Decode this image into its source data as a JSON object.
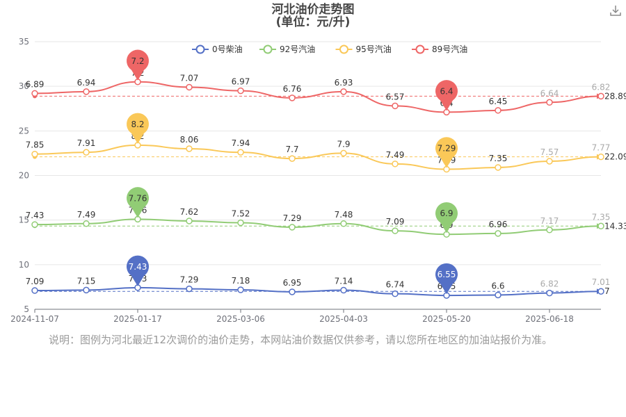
{
  "header": {
    "title": "河北油价走势图",
    "subtitle": "(单位：元/升)",
    "download_icon": "download-icon"
  },
  "footer": {
    "note": "说明：图例为河北最近12次调价的油价走势，本网站油价数据仅供参考，请以您所在地区的加油站报价为准。"
  },
  "chart_data": {
    "type": "line",
    "x_ticks": [
      "2024-11-07",
      "2025-01-17",
      "2025-03-06",
      "2025-04-03",
      "2025-05-20",
      "2025-06-18"
    ],
    "ylim": [
      5,
      35
    ],
    "y_ticks": [
      5,
      10,
      15,
      20,
      25,
      30,
      35
    ],
    "legend_position": "top-center",
    "grid": true,
    "series": [
      {
        "name": "0号柴油",
        "color": "#5470c6",
        "values": [
          7.09,
          7.15,
          7.43,
          7.29,
          7.18,
          6.95,
          7.14,
          6.74,
          6.55,
          6.6,
          6.82,
          7.01
        ],
        "draw_values": [
          7.1,
          7.15,
          7.43,
          7.29,
          7.18,
          6.95,
          7.14,
          6.74,
          6.55,
          6.6,
          6.82,
          7.01
        ],
        "marker_labels": [
          "",
          "",
          "7.43",
          "",
          "",
          "",
          "",
          "",
          "6.55",
          "",
          "",
          ""
        ],
        "reference_label": "7",
        "max_pin": "7.43",
        "min_pin": "6.55"
      },
      {
        "name": "92号汽油",
        "color": "#91cc75",
        "values": [
          7.43,
          7.49,
          7.76,
          7.62,
          7.52,
          7.29,
          7.48,
          7.09,
          6.9,
          6.96,
          7.17,
          7.35
        ],
        "draw_values": [
          14.5,
          14.6,
          15.1,
          14.9,
          14.7,
          14.2,
          14.6,
          13.8,
          13.4,
          13.5,
          13.9,
          14.33
        ],
        "marker_labels": [
          "",
          "",
          "7.76",
          "",
          "",
          "",
          "",
          "",
          "6.9",
          "",
          "",
          ""
        ],
        "reference_label": "14.33",
        "max_pin": "7.76",
        "min_pin": "6.9"
      },
      {
        "name": "95号汽油",
        "color": "#fac858",
        "values": [
          7.85,
          7.91,
          8.2,
          8.06,
          7.94,
          7.7,
          7.9,
          7.49,
          7.29,
          7.35,
          7.57,
          7.77
        ],
        "draw_values": [
          22.4,
          22.6,
          23.4,
          23.0,
          22.6,
          21.9,
          22.5,
          21.3,
          20.7,
          20.9,
          21.6,
          22.09
        ],
        "marker_labels": [
          "",
          "",
          "8.2",
          "",
          "",
          "",
          "",
          "",
          "7.29",
          "",
          "",
          ""
        ],
        "reference_label": "22.09",
        "max_pin": "8.2",
        "min_pin": "7.29"
      },
      {
        "name": "89号汽油",
        "color": "#ee6666",
        "values": [
          6.89,
          6.94,
          7.2,
          7.07,
          6.97,
          6.76,
          6.93,
          6.57,
          6.4,
          6.45,
          6.64,
          6.82
        ],
        "draw_values": [
          29.2,
          29.4,
          30.5,
          29.9,
          29.5,
          28.7,
          29.4,
          27.8,
          27.1,
          27.3,
          28.2,
          28.89
        ],
        "marker_labels": [
          "",
          "",
          "7.2",
          "",
          "",
          "",
          "",
          "",
          "6.4",
          "",
          "",
          ""
        ],
        "reference_label": "28.89",
        "max_pin": "7.2",
        "min_pin": "6.4"
      }
    ]
  }
}
